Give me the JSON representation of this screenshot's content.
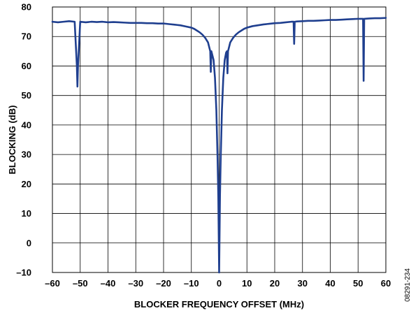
{
  "chart_data": {
    "type": "line",
    "xlabel": "BLOCKER FREQUENCY OFFSET (MHz)",
    "ylabel": "BLOCKING (dB)",
    "xlim": [
      -60,
      60
    ],
    "ylim": [
      -10,
      80
    ],
    "xticks": [
      -60,
      -50,
      -40,
      -30,
      -20,
      -10,
      0,
      10,
      20,
      30,
      40,
      50,
      60
    ],
    "yticks": [
      -10,
      0,
      10,
      20,
      30,
      40,
      50,
      60,
      70,
      80
    ],
    "xtick_labels": [
      "–60",
      "–50",
      "–40",
      "–30",
      "–20",
      "–10",
      "0",
      "10",
      "20",
      "30",
      "40",
      "50",
      "60"
    ],
    "ytick_labels": [
      "–10",
      "0",
      "10",
      "20",
      "30",
      "40",
      "50",
      "60",
      "70",
      "80"
    ],
    "grid": true,
    "line_color": "#1f3f8f",
    "series": [
      {
        "x": [
          -60,
          -58,
          -56,
          -54,
          -52,
          -51.2,
          -51,
          -50.8,
          -50,
          -48,
          -46,
          -44,
          -42,
          -40,
          -38,
          -36,
          -34,
          -32,
          -30,
          -28,
          -26,
          -24,
          -22,
          -20,
          -18,
          -16,
          -14,
          -12,
          -10,
          -9,
          -8,
          -7,
          -6,
          -5,
          -4,
          -3.2,
          -3,
          -2.8,
          -2,
          -1.5,
          -1,
          -0.6,
          -0.3,
          0,
          0.3,
          0.6,
          1,
          1.5,
          2,
          2.5,
          2.8,
          3,
          3.2,
          4,
          5,
          6,
          7,
          8,
          9,
          10,
          12,
          14,
          16,
          18,
          20,
          22,
          24,
          26,
          26.8,
          27,
          27.2,
          28,
          30,
          32,
          34,
          36,
          38,
          40,
          42,
          44,
          46,
          48,
          50,
          51.8,
          52,
          52.2,
          54,
          56,
          58,
          60
        ],
        "y": [
          75,
          74.8,
          75,
          75.2,
          75,
          60,
          53,
          60,
          75,
          74.8,
          75,
          74.9,
          75,
          74.8,
          74.9,
          74.8,
          74.7,
          74.6,
          74.6,
          74.6,
          74.5,
          74.5,
          74.4,
          74.4,
          74.2,
          74.0,
          73.8,
          73.4,
          73.0,
          72.6,
          72.0,
          71.4,
          70.6,
          69.5,
          68.0,
          65.0,
          58,
          65.0,
          62.0,
          56.0,
          45.0,
          30.0,
          16.0,
          -10,
          16.0,
          30.0,
          45.0,
          56.0,
          62.0,
          64.5,
          65.0,
          57.5,
          65.0,
          68.0,
          69.5,
          70.6,
          71.4,
          72.0,
          72.6,
          73.0,
          73.5,
          73.8,
          74.1,
          74.3,
          74.5,
          74.6,
          74.8,
          75.0,
          75.0,
          67.5,
          75.0,
          75.1,
          75.2,
          75.3,
          75.3,
          75.4,
          75.5,
          75.6,
          75.6,
          75.7,
          75.8,
          75.9,
          76.0,
          76.0,
          55.0,
          76.0,
          76.1,
          76.2,
          76.2,
          76.3
        ]
      }
    ],
    "figure_id": "08291-234"
  }
}
